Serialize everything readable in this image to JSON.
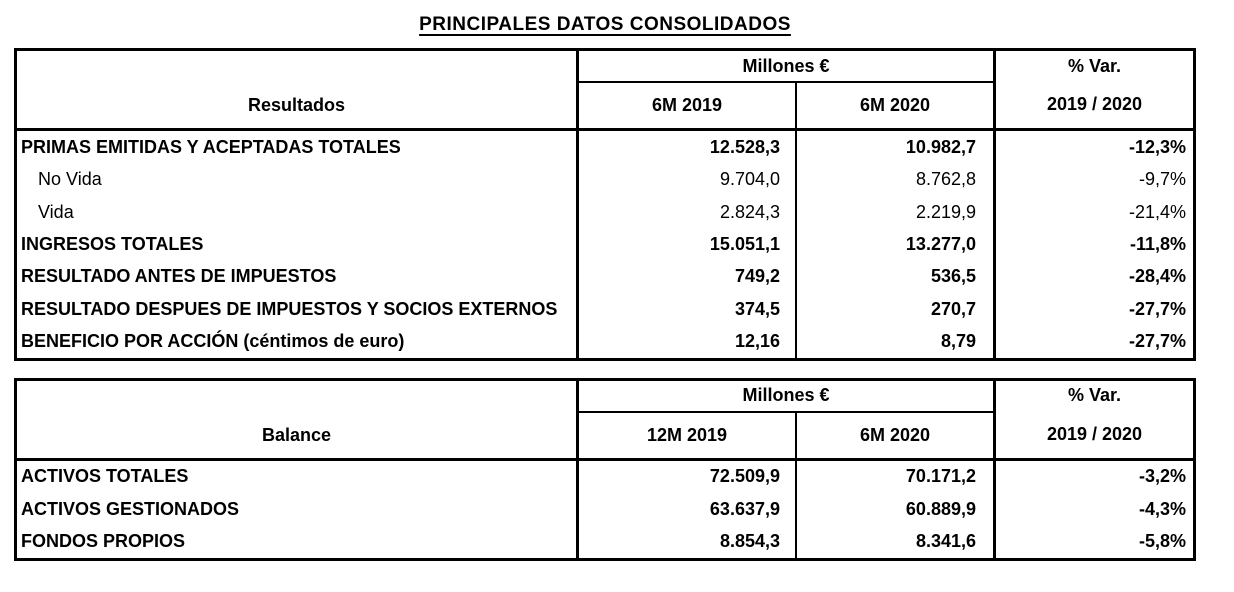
{
  "title": "PRINCIPALES DATOS CONSOLIDADOS",
  "colors": {
    "text": "#000000",
    "border": "#000000",
    "background": "#ffffff"
  },
  "tables": [
    {
      "section_header": "Resultados",
      "units_header": "Millones €",
      "var_header": "% Var.",
      "var_period": "2019 / 2020",
      "period1": "6M 2019",
      "period2": "6M 2020",
      "rows": [
        {
          "label": "PRIMAS EMITIDAS Y ACEPTADAS TOTALES",
          "bold": true,
          "indent": false,
          "v1": "12.528,3",
          "v2": "10.982,7",
          "var": "-12,3%"
        },
        {
          "label": "No Vida",
          "bold": false,
          "indent": true,
          "v1": "9.704,0",
          "v2": "8.762,8",
          "var": "-9,7%"
        },
        {
          "label": "Vida",
          "bold": false,
          "indent": true,
          "v1": "2.824,3",
          "v2": "2.219,9",
          "var": "-21,4%"
        },
        {
          "label": "INGRESOS TOTALES",
          "bold": true,
          "indent": false,
          "v1": "15.051,1",
          "v2": "13.277,0",
          "var": "-11,8%"
        },
        {
          "label": "RESULTADO ANTES DE IMPUESTOS",
          "bold": true,
          "indent": false,
          "v1": "749,2",
          "v2": "536,5",
          "var": "-28,4%"
        },
        {
          "label": "RESULTADO DESPUES DE IMPUESTOS Y SOCIOS EXTERNOS",
          "bold": true,
          "indent": false,
          "v1": "374,5",
          "v2": "270,7",
          "var": "-27,7%"
        },
        {
          "label": "BENEFICIO POR ACCIÓN (céntimos de euro)",
          "bold": true,
          "indent": false,
          "v1": "12,16",
          "v2": "8,79",
          "var": "-27,7%"
        }
      ]
    },
    {
      "section_header": "Balance",
      "units_header": "Millones €",
      "var_header": "% Var.",
      "var_period": "2019 / 2020",
      "period1": "12M 2019",
      "period2": "6M 2020",
      "rows": [
        {
          "label": "ACTIVOS TOTALES",
          "bold": true,
          "indent": false,
          "v1": "72.509,9",
          "v2": "70.171,2",
          "var": "-3,2%"
        },
        {
          "label": "ACTIVOS GESTIONADOS",
          "bold": true,
          "indent": false,
          "v1": "63.637,9",
          "v2": "60.889,9",
          "var": "-4,3%"
        },
        {
          "label": "FONDOS PROPIOS",
          "bold": true,
          "indent": false,
          "v1": "8.854,3",
          "v2": "8.341,6",
          "var": "-5,8%"
        }
      ]
    }
  ]
}
